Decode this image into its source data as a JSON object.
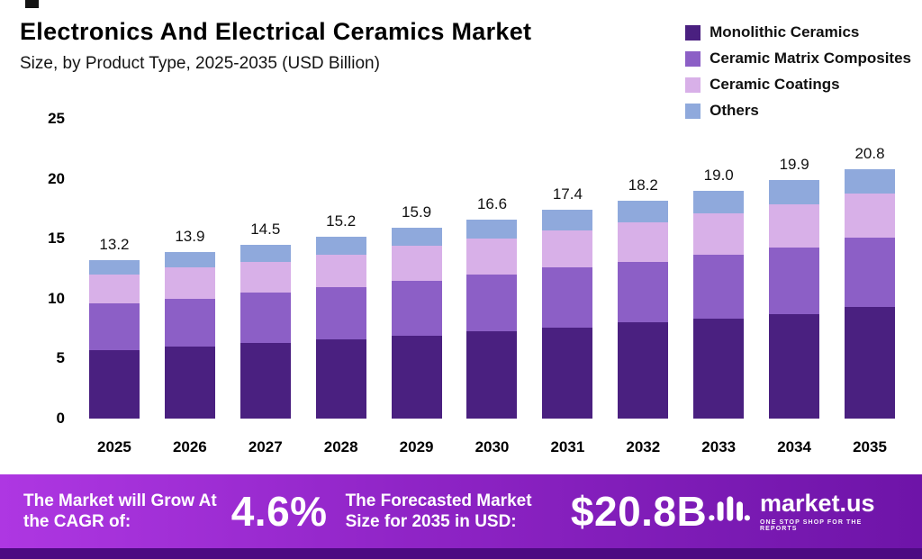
{
  "header": {
    "title": "Electronics And Electrical Ceramics Market",
    "subtitle": "Size, by Product Type, 2025-2035 (USD Billion)"
  },
  "legend": [
    {
      "label": "Monolithic Ceramics",
      "color": "#4A2080"
    },
    {
      "label": "Ceramic Matrix Composites",
      "color": "#8C5FC6"
    },
    {
      "label": "Ceramic Coatings",
      "color": "#D8B0E8"
    },
    {
      "label": "Others",
      "color": "#8FA9DC"
    }
  ],
  "chart_data": {
    "type": "bar",
    "stacked": true,
    "title": "Electronics And Electrical Ceramics Market Size, by Product Type, 2025-2035 (USD Billion)",
    "categories": [
      "2025",
      "2026",
      "2027",
      "2028",
      "2029",
      "2030",
      "2031",
      "2032",
      "2033",
      "2034",
      "2035"
    ],
    "series": [
      {
        "name": "Monolithic Ceramics",
        "color": "#4A2080",
        "values": [
          5.7,
          6.0,
          6.3,
          6.6,
          6.9,
          7.3,
          7.6,
          8.0,
          8.3,
          8.7,
          9.3
        ]
      },
      {
        "name": "Ceramic Matrix Composites",
        "color": "#8C5FC6",
        "values": [
          3.9,
          4.0,
          4.2,
          4.4,
          4.6,
          4.7,
          5.0,
          5.1,
          5.4,
          5.6,
          5.8
        ]
      },
      {
        "name": "Ceramic Coatings",
        "color": "#D8B0E8",
        "values": [
          2.4,
          2.6,
          2.6,
          2.7,
          2.9,
          3.0,
          3.1,
          3.3,
          3.4,
          3.6,
          3.7
        ]
      },
      {
        "name": "Others",
        "color": "#8FA9DC",
        "values": [
          1.2,
          1.3,
          1.4,
          1.5,
          1.5,
          1.6,
          1.7,
          1.8,
          1.9,
          2.0,
          2.0
        ]
      }
    ],
    "totals": [
      13.2,
      13.9,
      14.5,
      15.2,
      15.9,
      16.6,
      17.4,
      18.2,
      19.0,
      19.9,
      20.8
    ],
    "xlabel": "",
    "ylabel": "",
    "ylim": [
      0,
      25
    ],
    "yticks": [
      0,
      5,
      10,
      15,
      20,
      25
    ],
    "grid": false,
    "legend_position": "top-right"
  },
  "banner": {
    "cagr_label": "The Market will Grow At the CAGR of:",
    "cagr_value": "4.6%",
    "forecast_label": "The Forecasted Market Size for 2035 in USD:",
    "forecast_value": "$20.8B",
    "brand": "market.us",
    "brand_tagline": "ONE STOP SHOP FOR THE REPORTS"
  }
}
